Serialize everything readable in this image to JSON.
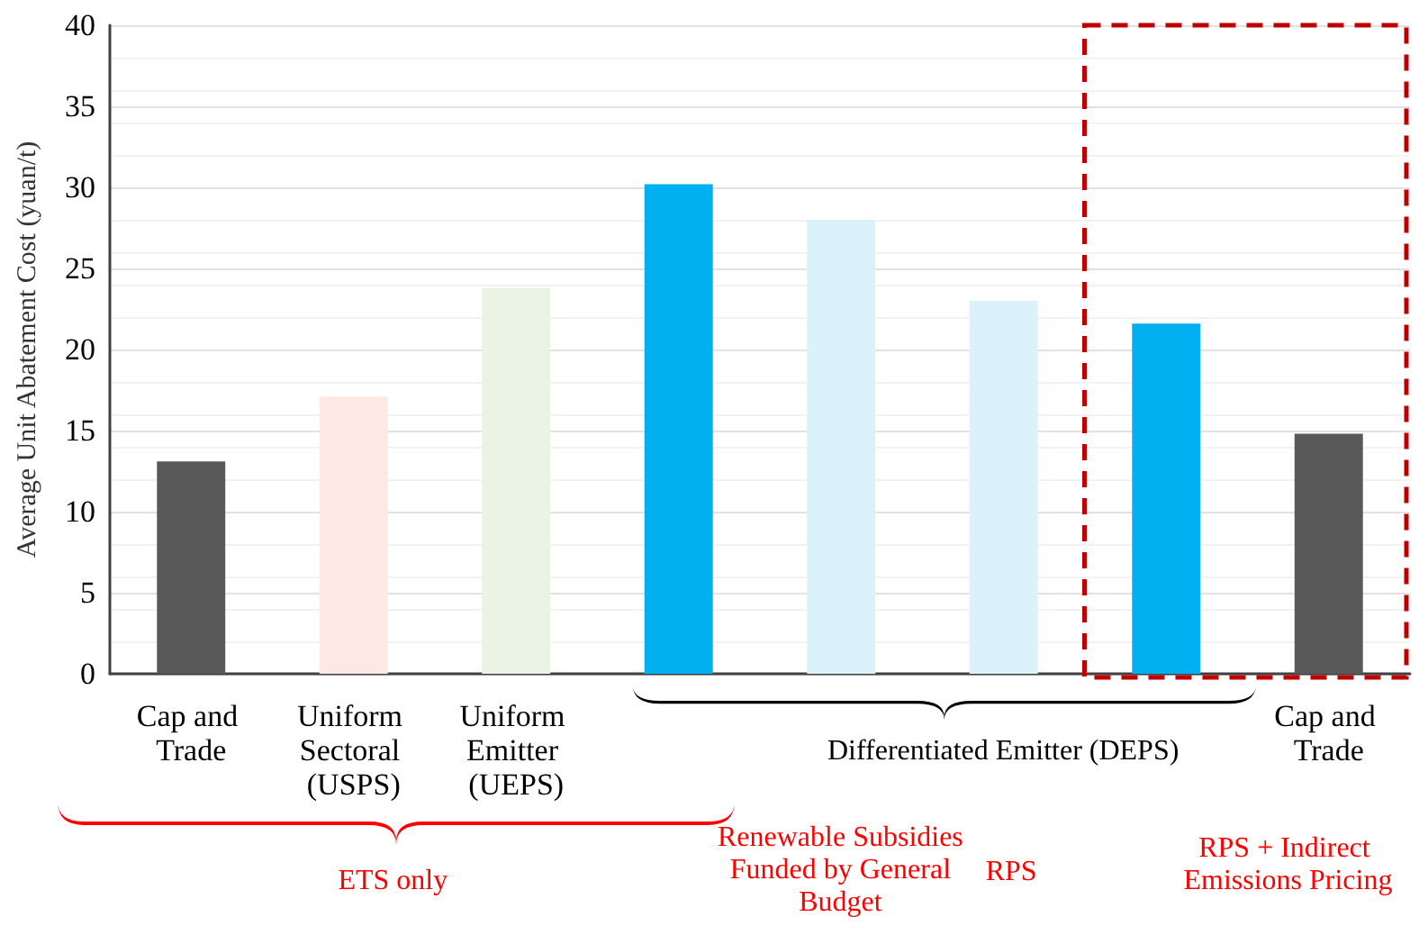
{
  "chart_data": {
    "type": "bar",
    "ylabel": "Average Unit Abatement Cost (yuan/t)",
    "categories": [
      "Cap and Trade",
      "Uniform Sectoral (USPS)",
      "Uniform Emitter (UEPS)",
      null,
      null,
      null,
      null,
      "Cap and Trade"
    ],
    "values": [
      13.1,
      17.1,
      23.8,
      30.2,
      28.0,
      23.0,
      21.6,
      14.8
    ],
    "colors": [
      "#595959",
      "#fde9e3",
      "#ebf3e5",
      "#00b0f0",
      "#dcf2fb",
      "#dcf2fb",
      "#00b0f0",
      "#595959"
    ],
    "ylim": [
      0,
      40
    ],
    "yticks": [
      0,
      5,
      10,
      15,
      20,
      25,
      30,
      35,
      40
    ],
    "grid": "y",
    "annotations": [
      "Differentiated Emitter (DEPS)",
      "ETS only",
      "Renewable Subsidies Funded by General Budget",
      "RPS",
      "RPS + Indirect Emissions Pricing"
    ]
  }
}
